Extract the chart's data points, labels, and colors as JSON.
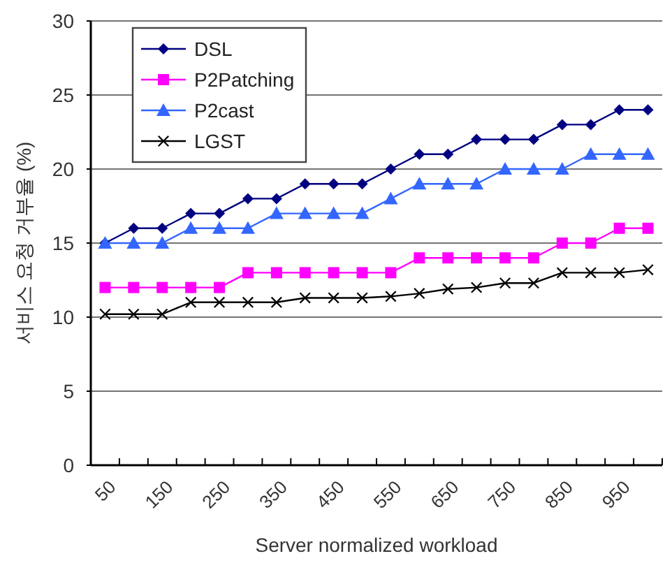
{
  "chart_data": {
    "type": "line",
    "xlabel": "Server normalized workload",
    "ylabel": "서비스 요청 거부율 (%)",
    "categories": [
      "50",
      null,
      "150",
      null,
      "250",
      null,
      "350",
      null,
      "450",
      null,
      "550",
      null,
      "650",
      null,
      "750",
      null,
      "850",
      null,
      "950",
      null
    ],
    "ylim": [
      0,
      30
    ],
    "yticks": [
      0,
      5,
      10,
      15,
      20,
      25,
      30
    ],
    "grid": "y",
    "legend": "top left",
    "series": [
      {
        "name": "DSL",
        "color": "#000080",
        "marker": "diamond",
        "values": [
          15,
          16,
          16,
          17,
          17,
          18,
          18,
          19,
          19,
          19,
          20,
          21,
          21,
          22,
          22,
          22,
          23,
          23,
          24,
          24
        ]
      },
      {
        "name": "P2Patching",
        "color": "#ff00ff",
        "marker": "square",
        "values": [
          12,
          12,
          12,
          12,
          12,
          13,
          13,
          13,
          13,
          13,
          13,
          14,
          14,
          14,
          14,
          14,
          15,
          15,
          16,
          16
        ]
      },
      {
        "name": "P2cast",
        "color": "#3366ff",
        "marker": "triangle",
        "values": [
          15,
          15,
          15,
          16,
          16,
          16,
          17,
          17,
          17,
          17,
          18,
          19,
          19,
          19,
          20,
          20,
          20,
          21,
          21,
          21
        ]
      },
      {
        "name": "LGST",
        "color": "#000000",
        "marker": "cross",
        "values": [
          10.2,
          10.2,
          10.2,
          11,
          11,
          11,
          11,
          11.3,
          11.3,
          11.3,
          11.4,
          11.6,
          11.9,
          12,
          12.3,
          12.3,
          13,
          13,
          13,
          13.2
        ]
      }
    ]
  }
}
